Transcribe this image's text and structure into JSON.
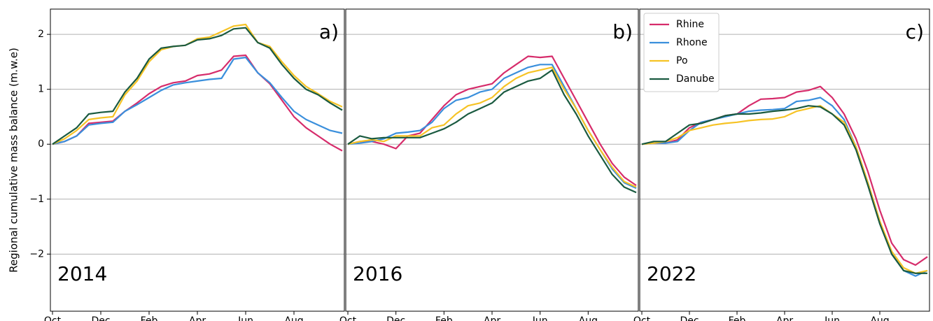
{
  "chart_data": [
    {
      "type": "line",
      "label": "a)",
      "year": "2014",
      "ylabel": "Regional cumulative mass balance (m.w.e)",
      "categories": [
        "Oct",
        null,
        null,
        null,
        "Dec",
        null,
        null,
        null,
        "Feb",
        null,
        null,
        null,
        "Apr",
        null,
        null,
        null,
        "Jun",
        null,
        null,
        null,
        "Aug",
        null,
        null,
        null,
        null
      ],
      "ylim": [
        -3.04,
        2.46
      ],
      "yticks": [
        {
          "value": -2,
          "label": "−2"
        },
        {
          "value": -1,
          "label": "−1"
        },
        0,
        1,
        2
      ],
      "grid": true,
      "series": [
        {
          "name": "Rhine",
          "color": "#d62c6b",
          "values": [
            0,
            0.05,
            0.15,
            0.38,
            0.4,
            0.42,
            0.6,
            0.75,
            0.92,
            1.05,
            1.12,
            1.15,
            1.25,
            1.28,
            1.35,
            1.6,
            1.62,
            1.3,
            1.1,
            0.8,
            0.5,
            0.3,
            0.15,
            0.0,
            -0.12
          ]
        },
        {
          "name": "Rhone",
          "color": "#3a8fdc",
          "values": [
            0,
            0.05,
            0.15,
            0.35,
            0.38,
            0.4,
            0.6,
            0.72,
            0.85,
            0.98,
            1.08,
            1.12,
            1.15,
            1.18,
            1.2,
            1.55,
            1.58,
            1.3,
            1.12,
            0.85,
            0.6,
            0.45,
            0.35,
            0.25,
            0.2
          ]
        },
        {
          "name": "Po",
          "color": "#f6c325",
          "values": [
            0,
            0.1,
            0.25,
            0.45,
            0.48,
            0.5,
            0.9,
            1.15,
            1.5,
            1.72,
            1.78,
            1.8,
            1.92,
            1.95,
            2.05,
            2.15,
            2.18,
            1.85,
            1.78,
            1.5,
            1.25,
            1.05,
            0.92,
            0.78,
            0.68
          ]
        },
        {
          "name": "Danube",
          "color": "#1a5a40",
          "values": [
            0,
            0.15,
            0.3,
            0.55,
            0.58,
            0.6,
            0.95,
            1.2,
            1.55,
            1.75,
            1.78,
            1.8,
            1.9,
            1.92,
            1.98,
            2.1,
            2.12,
            1.85,
            1.75,
            1.45,
            1.2,
            1.0,
            0.9,
            0.75,
            0.62
          ]
        }
      ]
    },
    {
      "type": "line",
      "label": "b)",
      "year": "2016",
      "categories": [
        "Oct",
        null,
        null,
        null,
        "Dec",
        null,
        null,
        null,
        "Feb",
        null,
        null,
        null,
        "Apr",
        null,
        null,
        null,
        "Jun",
        null,
        null,
        null,
        "Aug",
        null,
        null,
        null,
        null
      ],
      "ylim": [
        -3.04,
        2.46
      ],
      "yticks": [
        -2,
        -1,
        0,
        1,
        2
      ],
      "grid": true,
      "series": [
        {
          "name": "Rhine",
          "color": "#d62c6b",
          "values": [
            0,
            0.05,
            0.05,
            0.0,
            -0.08,
            0.15,
            0.2,
            0.45,
            0.7,
            0.9,
            1.0,
            1.05,
            1.1,
            1.3,
            1.45,
            1.6,
            1.58,
            1.6,
            1.2,
            0.8,
            0.4,
            0.0,
            -0.35,
            -0.6,
            -0.75
          ]
        },
        {
          "name": "Rhone",
          "color": "#3a8fdc",
          "values": [
            0,
            0.02,
            0.05,
            0.1,
            0.2,
            0.22,
            0.25,
            0.4,
            0.65,
            0.8,
            0.85,
            0.95,
            1.0,
            1.2,
            1.3,
            1.4,
            1.45,
            1.45,
            1.05,
            0.65,
            0.25,
            -0.1,
            -0.45,
            -0.7,
            -0.8
          ]
        },
        {
          "name": "Po",
          "color": "#f6c325",
          "values": [
            0,
            0.05,
            0.08,
            0.05,
            0.15,
            0.15,
            0.15,
            0.3,
            0.35,
            0.55,
            0.7,
            0.75,
            0.85,
            1.05,
            1.2,
            1.3,
            1.35,
            1.4,
            1.0,
            0.65,
            0.25,
            -0.1,
            -0.42,
            -0.68,
            -0.78
          ]
        },
        {
          "name": "Danube",
          "color": "#1a5a40",
          "values": [
            0,
            0.15,
            0.1,
            0.12,
            0.12,
            0.12,
            0.12,
            0.2,
            0.28,
            0.4,
            0.55,
            0.65,
            0.75,
            0.95,
            1.05,
            1.15,
            1.2,
            1.35,
            0.9,
            0.55,
            0.15,
            -0.2,
            -0.55,
            -0.78,
            -0.88
          ]
        }
      ]
    },
    {
      "type": "line",
      "label": "c)",
      "year": "2022",
      "categories": [
        "Oct",
        null,
        null,
        null,
        "Dec",
        null,
        null,
        null,
        "Feb",
        null,
        null,
        null,
        "Apr",
        null,
        null,
        null,
        "Jun",
        null,
        null,
        null,
        "Aug",
        null,
        null,
        null,
        null
      ],
      "ylim": [
        -3.04,
        2.46
      ],
      "yticks": [
        -2,
        -1,
        0,
        1,
        2
      ],
      "grid": true,
      "legend": "upper left",
      "series": [
        {
          "name": "Rhine",
          "color": "#d62c6b",
          "values": [
            0,
            0.02,
            0.02,
            0.08,
            0.3,
            0.4,
            0.45,
            0.52,
            0.55,
            0.7,
            0.82,
            0.83,
            0.85,
            0.95,
            0.98,
            1.05,
            0.85,
            0.55,
            0.1,
            -0.5,
            -1.2,
            -1.8,
            -2.1,
            -2.2,
            -2.05
          ]
        },
        {
          "name": "Rhone",
          "color": "#3a8fdc",
          "values": [
            0,
            0.02,
            0.02,
            0.05,
            0.25,
            0.4,
            0.45,
            0.5,
            0.55,
            0.6,
            0.62,
            0.63,
            0.65,
            0.78,
            0.8,
            0.85,
            0.7,
            0.45,
            -0.05,
            -0.7,
            -1.4,
            -2.0,
            -2.3,
            -2.4,
            -2.3
          ]
        },
        {
          "name": "Po",
          "color": "#f6c325",
          "values": [
            0,
            0.02,
            0.05,
            0.12,
            0.25,
            0.3,
            0.35,
            0.38,
            0.4,
            0.43,
            0.45,
            0.46,
            0.5,
            0.6,
            0.65,
            0.7,
            0.55,
            0.4,
            -0.05,
            -0.7,
            -1.4,
            -1.95,
            -2.25,
            -2.35,
            -2.3
          ]
        },
        {
          "name": "Danube",
          "color": "#1a5a40",
          "values": [
            0,
            0.05,
            0.05,
            0.2,
            0.35,
            0.38,
            0.45,
            0.52,
            0.55,
            0.55,
            0.57,
            0.6,
            0.62,
            0.65,
            0.7,
            0.68,
            0.55,
            0.35,
            -0.1,
            -0.75,
            -1.45,
            -2.0,
            -2.3,
            -2.35,
            -2.35
          ]
        }
      ]
    }
  ]
}
